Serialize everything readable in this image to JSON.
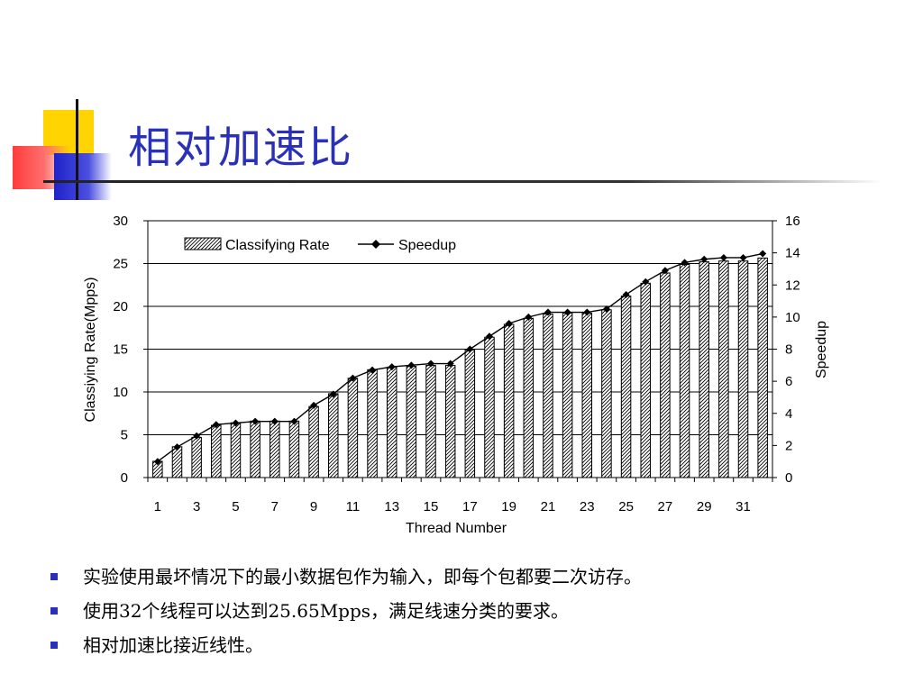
{
  "slide": {
    "title": "相对加速比",
    "bullets": [
      "实验使用最坏情况下的最小数据包作为输入，即每个包都要二次访存。",
      "使用32个线程可以达到25.65Mpps，满足线速分类的要求。",
      "相对加速比接近线性。"
    ],
    "colors": {
      "title": "#2a31b8",
      "bullet": "#2a31b8",
      "deco_yellow": "#ffd400",
      "deco_red": "#ff3b3b",
      "deco_blue": "#1f22c8"
    }
  },
  "chart_data": {
    "type": "bar",
    "title": "",
    "xlabel": "Thread Number",
    "ylabel": "Classiying Rate(Mpps)",
    "y2label": "Speedup",
    "ylim": [
      0,
      30
    ],
    "y2lim": [
      0,
      16
    ],
    "yticks": [
      0,
      5,
      10,
      15,
      20,
      25,
      30
    ],
    "y2ticks": [
      0,
      2,
      4,
      6,
      8,
      10,
      12,
      14,
      16
    ],
    "x": [
      1,
      2,
      3,
      4,
      5,
      6,
      7,
      8,
      9,
      10,
      11,
      12,
      13,
      14,
      15,
      16,
      17,
      18,
      19,
      20,
      21,
      22,
      23,
      24,
      25,
      26,
      27,
      28,
      29,
      30,
      31,
      32
    ],
    "xtick_labels": [
      "1",
      "3",
      "5",
      "7",
      "9",
      "11",
      "13",
      "15",
      "17",
      "19",
      "21",
      "23",
      "25",
      "27",
      "29",
      "31"
    ],
    "grid": "horizontal",
    "legend_position": "top-left",
    "series": [
      {
        "name": "Classifying Rate",
        "kind": "bar",
        "axis": "left",
        "pattern": "diagonal-hatch",
        "values": [
          1.9,
          3.6,
          4.7,
          6.1,
          6.4,
          6.6,
          6.6,
          6.6,
          8.3,
          9.8,
          11.6,
          12.6,
          12.9,
          13.0,
          13.1,
          13.1,
          14.9,
          16.4,
          17.9,
          18.6,
          19.1,
          19.2,
          19.2,
          19.6,
          21.2,
          22.7,
          23.9,
          24.9,
          25.2,
          25.3,
          25.3,
          25.65
        ]
      },
      {
        "name": "Speedup",
        "kind": "line",
        "axis": "right",
        "marker": "diamond",
        "values": [
          1.0,
          1.9,
          2.6,
          3.3,
          3.4,
          3.5,
          3.5,
          3.5,
          4.5,
          5.2,
          6.2,
          6.7,
          6.9,
          7.0,
          7.1,
          7.1,
          8.0,
          8.8,
          9.6,
          10.0,
          10.3,
          10.3,
          10.3,
          10.5,
          11.4,
          12.2,
          12.9,
          13.4,
          13.6,
          13.7,
          13.7,
          13.95
        ]
      }
    ]
  }
}
